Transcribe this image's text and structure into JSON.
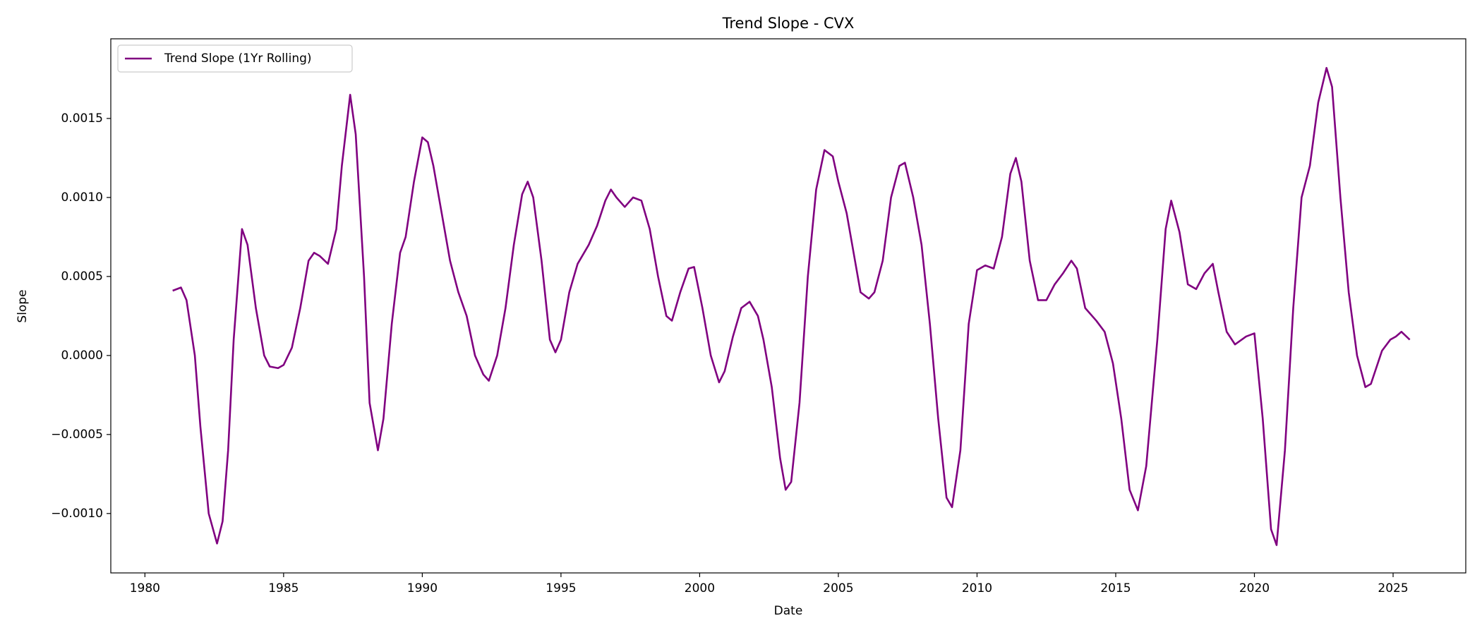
{
  "chart_data": {
    "type": "line",
    "title": "Trend Slope - CVX",
    "x_label": "Date",
    "y_label": "Slope",
    "x": [
      1981.0,
      1981.3,
      1981.5,
      1981.8,
      1982.0,
      1982.3,
      1982.6,
      1982.8,
      1983.0,
      1983.2,
      1983.5,
      1983.7,
      1984.0,
      1984.3,
      1984.5,
      1984.8,
      1985.0,
      1985.3,
      1985.6,
      1985.9,
      1986.1,
      1986.3,
      1986.6,
      1986.9,
      1987.1,
      1987.4,
      1987.6,
      1987.9,
      1988.1,
      1988.4,
      1988.6,
      1988.9,
      1989.2,
      1989.4,
      1989.7,
      1990.0,
      1990.2,
      1990.4,
      1990.7,
      1991.0,
      1991.3,
      1991.6,
      1991.9,
      1992.2,
      1992.4,
      1992.7,
      1993.0,
      1993.3,
      1993.6,
      1993.8,
      1994.0,
      1994.3,
      1994.6,
      1994.8,
      1995.0,
      1995.3,
      1995.6,
      1996.0,
      1996.3,
      1996.6,
      1996.8,
      1997.0,
      1997.3,
      1997.6,
      1997.9,
      1998.2,
      1998.5,
      1998.8,
      1999.0,
      1999.3,
      1999.6,
      1999.8,
      2000.1,
      2000.4,
      2000.7,
      2000.9,
      2001.2,
      2001.5,
      2001.8,
      2002.1,
      2002.3,
      2002.6,
      2002.9,
      2003.1,
      2003.3,
      2003.6,
      2003.9,
      2004.2,
      2004.5,
      2004.8,
      2005.0,
      2005.3,
      2005.6,
      2005.8,
      2006.1,
      2006.3,
      2006.6,
      2006.9,
      2007.2,
      2007.4,
      2007.7,
      2008.0,
      2008.3,
      2008.6,
      2008.9,
      2009.1,
      2009.4,
      2009.7,
      2010.0,
      2010.3,
      2010.6,
      2010.9,
      2011.2,
      2011.4,
      2011.6,
      2011.9,
      2012.2,
      2012.5,
      2012.8,
      2013.1,
      2013.4,
      2013.6,
      2013.9,
      2014.3,
      2014.6,
      2014.9,
      2015.2,
      2015.5,
      2015.8,
      2016.1,
      2016.5,
      2016.8,
      2017.0,
      2017.3,
      2017.6,
      2017.9,
      2018.2,
      2018.5,
      2018.7,
      2019.0,
      2019.3,
      2019.7,
      2020.0,
      2020.3,
      2020.6,
      2020.8,
      2021.1,
      2021.4,
      2021.7,
      2022.0,
      2022.3,
      2022.6,
      2022.8,
      2023.1,
      2023.4,
      2023.7,
      2024.0,
      2024.2,
      2024.6,
      2024.9,
      2025.1,
      2025.3,
      2025.6
    ],
    "series": [
      {
        "name": "Trend Slope (1Yr Rolling)",
        "color": "#800080",
        "values": [
          0.00041,
          0.00043,
          0.00035,
          0.0,
          -0.00045,
          -0.001,
          -0.00119,
          -0.00105,
          -0.0006,
          0.0001,
          0.0008,
          0.0007,
          0.0003,
          0.0,
          -7e-05,
          -8e-05,
          -6e-05,
          5e-05,
          0.0003,
          0.0006,
          0.00065,
          0.00063,
          0.00058,
          0.0008,
          0.0012,
          0.00165,
          0.0014,
          0.0005,
          -0.0003,
          -0.0006,
          -0.0004,
          0.0002,
          0.00065,
          0.00075,
          0.0011,
          0.00138,
          0.00135,
          0.0012,
          0.0009,
          0.0006,
          0.0004,
          0.00025,
          0.0,
          -0.00012,
          -0.00016,
          0.0,
          0.0003,
          0.0007,
          0.00102,
          0.0011,
          0.001,
          0.0006,
          0.0001,
          2e-05,
          0.0001,
          0.0004,
          0.00058,
          0.0007,
          0.00082,
          0.00098,
          0.00105,
          0.001,
          0.00094,
          0.001,
          0.00098,
          0.0008,
          0.0005,
          0.00025,
          0.00022,
          0.0004,
          0.00055,
          0.00056,
          0.0003,
          0.0,
          -0.00017,
          -0.0001,
          0.00012,
          0.0003,
          0.00034,
          0.00025,
          0.0001,
          -0.0002,
          -0.00065,
          -0.00085,
          -0.0008,
          -0.0003,
          0.0005,
          0.00105,
          0.0013,
          0.00126,
          0.0011,
          0.0009,
          0.0006,
          0.0004,
          0.00036,
          0.0004,
          0.0006,
          0.001,
          0.0012,
          0.00122,
          0.001,
          0.0007,
          0.0002,
          -0.0004,
          -0.0009,
          -0.00096,
          -0.0006,
          0.0002,
          0.00054,
          0.00057,
          0.00055,
          0.00075,
          0.00115,
          0.00125,
          0.0011,
          0.0006,
          0.00035,
          0.00035,
          0.00045,
          0.00052,
          0.0006,
          0.00055,
          0.0003,
          0.00022,
          0.00015,
          -5e-05,
          -0.0004,
          -0.00085,
          -0.00098,
          -0.0007,
          0.0001,
          0.0008,
          0.00098,
          0.00078,
          0.00045,
          0.00042,
          0.00052,
          0.00058,
          0.0004,
          0.00015,
          7e-05,
          0.00012,
          0.00014,
          -0.0004,
          -0.0011,
          -0.0012,
          -0.0006,
          0.0003,
          0.001,
          0.0012,
          0.0016,
          0.00182,
          0.0017,
          0.001,
          0.0004,
          0.0,
          -0.0002,
          -0.00018,
          3e-05,
          0.0001,
          0.00012,
          0.00015,
          0.0001
        ]
      }
    ],
    "xlim": [
      1978.77,
      2027.62
    ],
    "xticks": [
      1980,
      1985,
      1990,
      1995,
      2000,
      2005,
      2010,
      2015,
      2020,
      2025
    ],
    "ylim": [
      -0.001376,
      0.002004
    ],
    "yticks": [
      {
        "value": -0.001,
        "label": "−0.0010"
      },
      {
        "value": -0.0005,
        "label": "−0.0005"
      },
      {
        "value": 0,
        "label": "0.0000"
      },
      0.0005,
      {
        "value": 0.001,
        "label": "0.0010"
      },
      0.0015
    ],
    "grid": false,
    "legend": "upper left"
  }
}
